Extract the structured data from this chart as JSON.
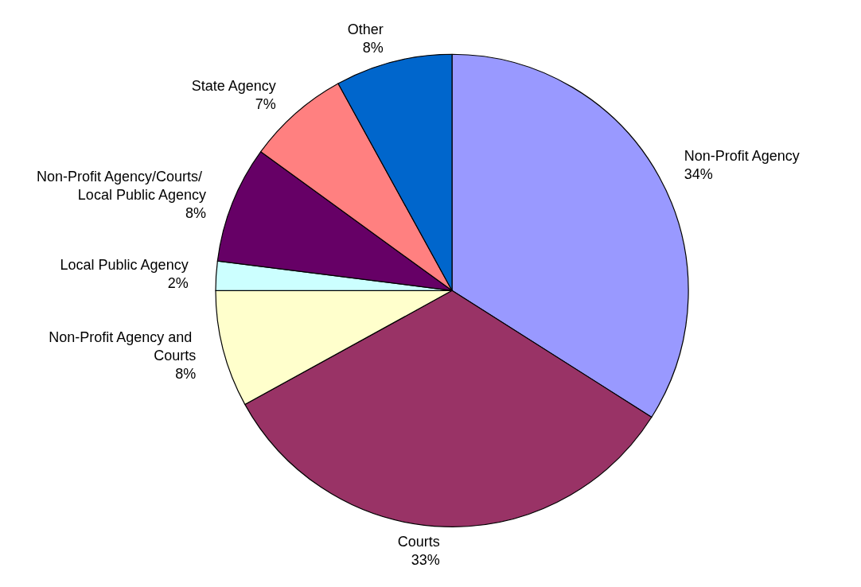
{
  "chart_data": {
    "type": "pie",
    "categories": [
      "Non-Profit Agency",
      "Courts",
      "Non-Profit Agency and Courts",
      "Local Public Agency",
      "Non-Profit Agency/Courts/ Local Public Agency",
      "State Agency",
      "Other"
    ],
    "values": [
      34,
      33,
      8,
      2,
      8,
      7,
      8
    ],
    "colors": [
      "#9999ff",
      "#993366",
      "#ffffcc",
      "#ccffff",
      "#660066",
      "#ff8080",
      "#0066cc"
    ],
    "value_labels": [
      "34%",
      "33%",
      "8%",
      "2%",
      "8%",
      "7%",
      "8%"
    ],
    "legend": false
  }
}
